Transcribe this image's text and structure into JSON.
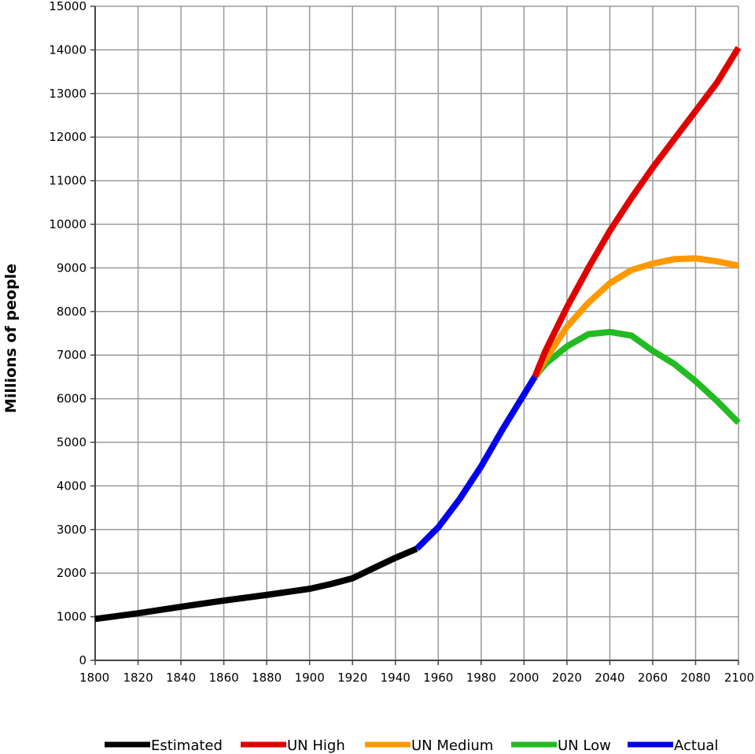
{
  "chart_data": {
    "type": "line",
    "title": "",
    "xlabel": "",
    "ylabel": "Millions of people",
    "xlim": [
      1800,
      2100
    ],
    "ylim": [
      0,
      15000
    ],
    "xticks": [
      1800,
      1820,
      1840,
      1860,
      1880,
      1900,
      1920,
      1940,
      1960,
      1980,
      2000,
      2020,
      2040,
      2060,
      2080,
      2100
    ],
    "yticks": [
      0,
      1000,
      2000,
      3000,
      4000,
      5000,
      6000,
      7000,
      8000,
      9000,
      10000,
      11000,
      12000,
      13000,
      14000,
      15000
    ],
    "grid": true,
    "legend_position": "bottom",
    "series": [
      {
        "name": "Estimated",
        "color": "#000000",
        "x": [
          1800,
          1820,
          1840,
          1860,
          1880,
          1900,
          1910,
          1920,
          1930,
          1940,
          1950
        ],
        "y": [
          950,
          1080,
          1230,
          1370,
          1500,
          1640,
          1750,
          1880,
          2120,
          2350,
          2560
        ]
      },
      {
        "name": "UN High",
        "color": "#e00000",
        "x": [
          2005,
          2010,
          2020,
          2030,
          2040,
          2050,
          2060,
          2070,
          2080,
          2090,
          2100
        ],
        "y": [
          6500,
          7100,
          8100,
          9000,
          9850,
          10600,
          11300,
          11950,
          12600,
          13250,
          14050
        ]
      },
      {
        "name": "UN Medium",
        "color": "#ff9900",
        "x": [
          2005,
          2010,
          2020,
          2030,
          2040,
          2050,
          2060,
          2070,
          2080,
          2090,
          2100
        ],
        "y": [
          6500,
          6900,
          7650,
          8200,
          8650,
          8950,
          9100,
          9200,
          9220,
          9150,
          9050
        ]
      },
      {
        "name": "UN Low",
        "color": "#22bb22",
        "x": [
          2005,
          2010,
          2020,
          2030,
          2040,
          2050,
          2060,
          2070,
          2080,
          2090,
          2100
        ],
        "y": [
          6500,
          6800,
          7200,
          7480,
          7530,
          7450,
          7100,
          6800,
          6400,
          5950,
          5450
        ]
      },
      {
        "name": "Actual",
        "color": "#0000ee",
        "x": [
          1950,
          1960,
          1970,
          1980,
          1990,
          2000,
          2005
        ],
        "y": [
          2560,
          3050,
          3700,
          4450,
          5300,
          6100,
          6500
        ]
      }
    ]
  }
}
